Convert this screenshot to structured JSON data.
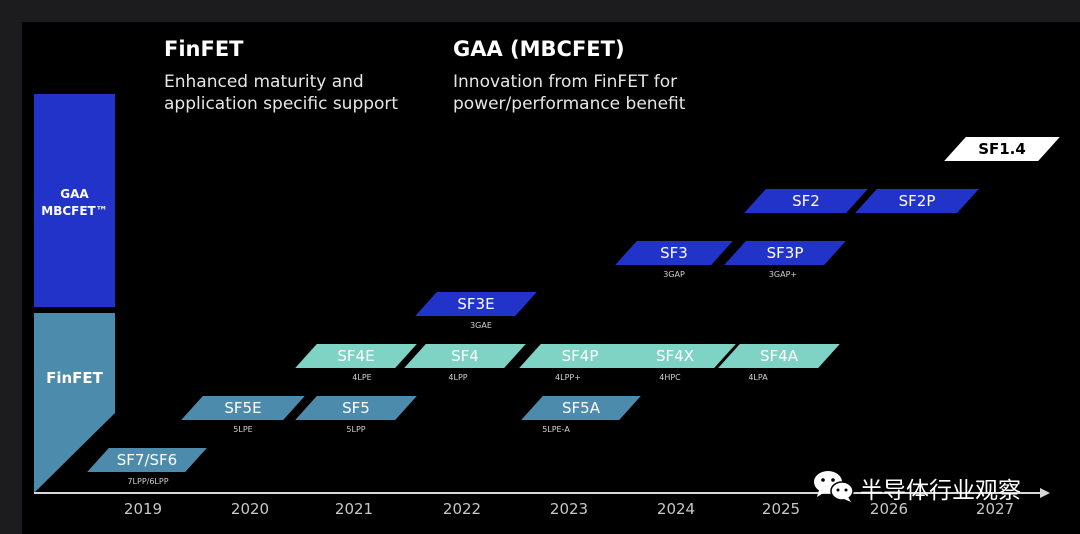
{
  "header": {
    "finfet_title": "FinFET",
    "finfet_line1": "Enhanced maturity and",
    "finfet_line2": "application specific support",
    "gaa_title": "GAA (MBCFET)",
    "gaa_line1": "Innovation from FinFET for",
    "gaa_line2": "power/performance benefit"
  },
  "side_bar": {
    "gaa_line1": "GAA",
    "gaa_line2": "MBCFET™",
    "finfet_label": "FinFET",
    "colors": {
      "gaa": "#2233c9",
      "finfet": "#4c8bab"
    }
  },
  "nodes": [
    {
      "label": "SF7/SF6",
      "sub": "7LPP/6LPP",
      "color": "steel"
    },
    {
      "label": "SF5E",
      "sub": "5LPE",
      "color": "steel"
    },
    {
      "label": "SF5",
      "sub": "5LPP",
      "color": "steel"
    },
    {
      "label": "SF5A",
      "sub": "5LPE-A",
      "color": "steel"
    },
    {
      "label": "SF4E",
      "sub": "4LPE",
      "color": "teal"
    },
    {
      "label": "SF4",
      "sub": "4LPP",
      "color": "teal"
    },
    {
      "label": "SF4P",
      "sub": "4LPP+",
      "color": "teal"
    },
    {
      "label": "SF4X",
      "sub": "4HPC",
      "color": "teal"
    },
    {
      "label": "SF4A",
      "sub": "4LPA",
      "color": "teal"
    },
    {
      "label": "SF3E",
      "sub": "3GAE",
      "color": "blue"
    },
    {
      "label": "SF3",
      "sub": "3GAP",
      "color": "blue"
    },
    {
      "label": "SF3P",
      "sub": "3GAP+",
      "color": "blue"
    },
    {
      "label": "SF2",
      "sub": "",
      "color": "blue"
    },
    {
      "label": "SF2P",
      "sub": "",
      "color": "blue"
    },
    {
      "label": "SF1.4",
      "sub": "",
      "color": "white"
    }
  ],
  "years": [
    "2019",
    "2020",
    "2021",
    "2022",
    "2023",
    "2024",
    "2025",
    "2026",
    "2027"
  ],
  "watermark": {
    "text": "半导体行业观察",
    "icon": "wechat-icon"
  }
}
